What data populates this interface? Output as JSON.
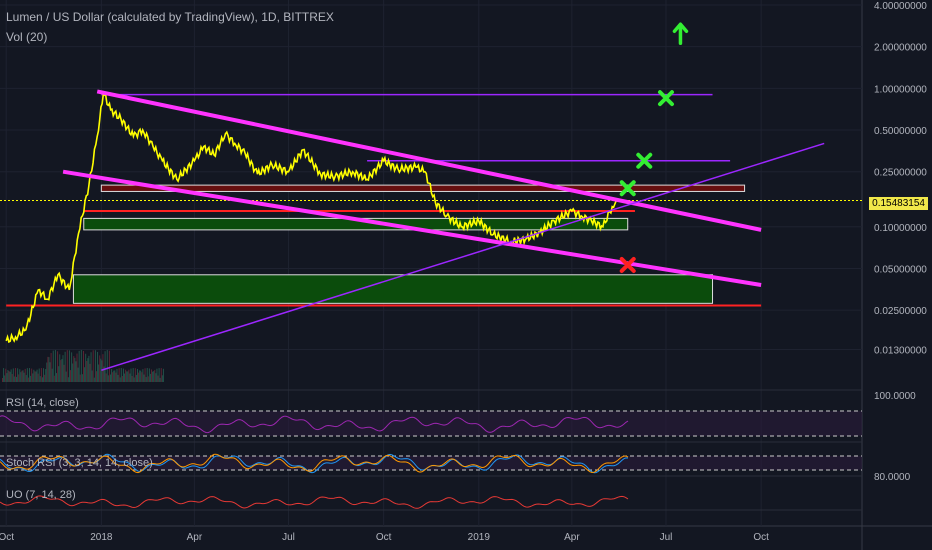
{
  "header": {
    "symbol_line": "Lumen / US Dollar (calculated by TradingView), 1D, BITTREX",
    "volume_label": "Vol (20)"
  },
  "indicators": {
    "rsi_label": "RSI (14, close)",
    "stoch_label": "Stoch RSI (3, 3, 14, 14, close)",
    "uo_label": "UO (7, 14, 28)",
    "rsi_axis_value": "100.0000",
    "stoch_axis_value": "80.0000"
  },
  "colors": {
    "background": "#131722",
    "price_line": "#ffff00",
    "trend_magenta": "#ff33ff",
    "trend_purple": "#9c27ff",
    "support_red": "#ff2222",
    "zone_green": "#0b4f0b",
    "zone_red": "#6b0f0f",
    "target_x": "#33ee33",
    "fail_x": "#ff2020",
    "rsi": "#9c27b0",
    "stoch_k": "#2196f3",
    "stoch_d": "#ff9800",
    "uo": "#e53935"
  },
  "chart_data": {
    "type": "line",
    "title": "Lumen / US Dollar (calculated by TradingView), 1D, BITTREX",
    "yscale": "log",
    "ylim": [
      0.0085,
      4.0
    ],
    "x_tick_labels": [
      "Oct",
      "2018",
      "Apr",
      "Jul",
      "Oct",
      "2019",
      "Apr",
      "Jul",
      "Oct"
    ],
    "x_ticks": [
      "2017-10-01",
      "2018-01-01",
      "2018-04-01",
      "2018-07-01",
      "2018-10-01",
      "2019-01-01",
      "2019-04-01",
      "2019-07-01",
      "2019-10-01"
    ],
    "y_tick_labels": [
      "4.00000000",
      "2.00000000",
      "1.00000000",
      "0.50000000",
      "0.25000000",
      "0.10000000",
      "0.05000000",
      "0.02500000",
      "0.01300000"
    ],
    "y_ticks": [
      4.0,
      2.0,
      1.0,
      0.5,
      0.25,
      0.1,
      0.05,
      0.025,
      0.013
    ],
    "current_price": "0.15483154",
    "current_price_value": 0.15483154,
    "series": [
      {
        "x": [
          "2017-10-01",
          "2017-10-10",
          "2017-10-20",
          "2017-11-01",
          "2017-11-10",
          "2017-11-20",
          "2017-12-01",
          "2017-12-10",
          "2017-12-20",
          "2017-12-28",
          "2018-01-03",
          "2018-01-10",
          "2018-01-20",
          "2018-02-01",
          "2018-02-10",
          "2018-02-20",
          "2018-03-01",
          "2018-03-15",
          "2018-04-01",
          "2018-04-10",
          "2018-04-20",
          "2018-05-01",
          "2018-05-10",
          "2018-05-20",
          "2018-06-01",
          "2018-06-15",
          "2018-07-01",
          "2018-07-15",
          "2018-08-01",
          "2018-08-15",
          "2018-09-01",
          "2018-09-15",
          "2018-10-01",
          "2018-10-15",
          "2018-11-01",
          "2018-11-10",
          "2018-11-20",
          "2018-12-01",
          "2018-12-15",
          "2019-01-01",
          "2019-01-15",
          "2019-02-01",
          "2019-02-15",
          "2019-03-01",
          "2019-03-15",
          "2019-04-01",
          "2019-04-10",
          "2019-04-20",
          "2019-05-01",
          "2019-05-10",
          "2019-05-14"
        ],
        "values": [
          0.015,
          0.016,
          0.018,
          0.035,
          0.03,
          0.045,
          0.035,
          0.09,
          0.2,
          0.45,
          0.92,
          0.7,
          0.6,
          0.45,
          0.5,
          0.38,
          0.3,
          0.22,
          0.3,
          0.38,
          0.33,
          0.47,
          0.4,
          0.34,
          0.24,
          0.28,
          0.25,
          0.36,
          0.24,
          0.23,
          0.25,
          0.22,
          0.3,
          0.26,
          0.27,
          0.25,
          0.15,
          0.12,
          0.1,
          0.11,
          0.088,
          0.078,
          0.081,
          0.091,
          0.11,
          0.13,
          0.12,
          0.11,
          0.1,
          0.14,
          0.155
        ]
      }
    ],
    "annotations": {
      "horizontal_lines": [
        {
          "value": 0.9,
          "from": "2018-01-01",
          "to": "2019-08-15",
          "color": "purple"
        },
        {
          "value": 0.3,
          "from": "2018-09-15",
          "to": "2019-09-01",
          "color": "purple"
        },
        {
          "value": 0.13,
          "from": "2017-12-15",
          "to": "2019-06-01",
          "color": "red"
        },
        {
          "value": 0.027,
          "from": "2017-10-01",
          "to": "2019-10-01",
          "color": "red"
        }
      ],
      "zones": [
        {
          "low": 0.18,
          "high": 0.2,
          "from": "2018-01-01",
          "to": "2019-09-15",
          "color": "red"
        },
        {
          "low": 0.095,
          "high": 0.115,
          "from": "2017-12-15",
          "to": "2019-05-25",
          "color": "green"
        },
        {
          "low": 0.028,
          "high": 0.045,
          "from": "2017-12-05",
          "to": "2019-08-15",
          "color": "green"
        }
      ],
      "trendlines": [
        {
          "from": [
            "2017-12-28",
            0.95
          ],
          "to": [
            "2019-10-01",
            0.095
          ],
          "color": "magenta"
        },
        {
          "from": [
            "2017-11-25",
            0.25
          ],
          "to": [
            "2019-10-01",
            0.038
          ],
          "color": "magenta"
        },
        {
          "from": [
            "2018-01-01",
            0.0092
          ],
          "to": [
            "2019-12-01",
            0.4
          ],
          "color": "purple"
        }
      ],
      "markers": [
        {
          "type": "arrow-up",
          "date": "2019-07-15",
          "value": 2.5,
          "color": "green"
        },
        {
          "type": "x",
          "date": "2019-07-01",
          "value": 0.85,
          "color": "green"
        },
        {
          "type": "x",
          "date": "2019-06-10",
          "value": 0.3,
          "color": "green"
        },
        {
          "type": "x",
          "date": "2019-05-25",
          "value": 0.19,
          "color": "green"
        },
        {
          "type": "x",
          "date": "2019-05-25",
          "value": 0.053,
          "color": "red"
        }
      ]
    }
  }
}
